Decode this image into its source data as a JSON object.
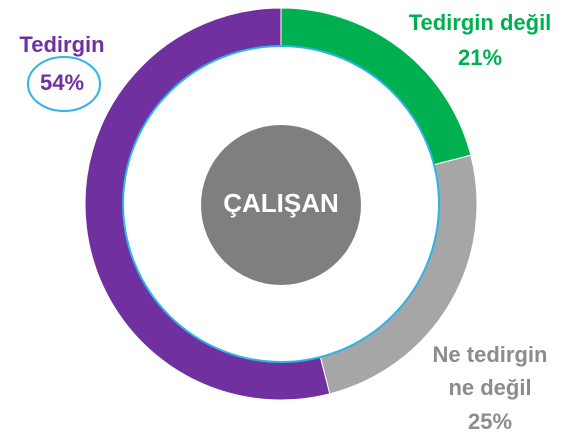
{
  "chart_data": {
    "type": "donut",
    "center_label": "ÇALIŞAN",
    "categories": [
      "Tedirgin değil",
      "Ne tedirgin ne değil",
      "Tedirgin"
    ],
    "values": [
      21,
      25,
      54
    ],
    "value_labels": [
      "21%",
      "25%",
      "54%"
    ],
    "colors": [
      "#00b050",
      "#a6a6a6",
      "#7030a0"
    ]
  }
}
